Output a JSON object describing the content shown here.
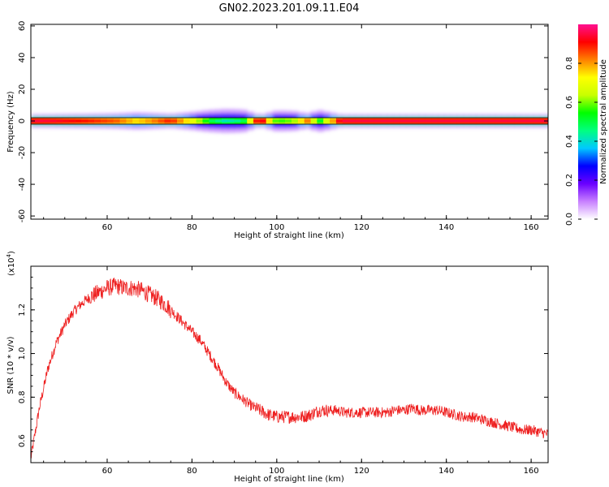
{
  "figure_title": "GN02.2023.201.09.11.E04",
  "chart_data": [
    {
      "type": "heatmap",
      "title": "GN02.2023.201.09.11.E04",
      "xlabel": "Height of straight line (km)",
      "ylabel": "Frequency (Hz)",
      "xlim": [
        42,
        164
      ],
      "ylim": [
        -62,
        61
      ],
      "xticks": [
        60,
        80,
        100,
        120,
        140,
        160
      ],
      "yticks": [
        -60,
        -40,
        -20,
        0,
        20,
        40,
        60
      ],
      "grid": false,
      "description_values": {
        "center_frequency_hz": 0,
        "peak_band": [
          {
            "x": 45,
            "amp": 0.9
          },
          {
            "x": 55,
            "amp": 0.85
          },
          {
            "x": 62,
            "amp": 0.8
          },
          {
            "x": 67,
            "amp": 0.7
          },
          {
            "x": 70,
            "amp": 0.75
          },
          {
            "x": 75,
            "amp": 0.85
          },
          {
            "x": 80,
            "amp": 0.65
          },
          {
            "x": 84,
            "amp": 0.45
          },
          {
            "x": 88,
            "amp": 0.35
          },
          {
            "x": 92,
            "amp": 0.4
          },
          {
            "x": 96,
            "amp": 0.95
          },
          {
            "x": 100,
            "amp": 0.5
          },
          {
            "x": 104,
            "amp": 0.55
          },
          {
            "x": 107,
            "amp": 0.8
          },
          {
            "x": 110,
            "amp": 0.45
          },
          {
            "x": 115,
            "amp": 0.9
          },
          {
            "x": 130,
            "amp": 0.9
          },
          {
            "x": 145,
            "amp": 0.9
          },
          {
            "x": 160,
            "amp": 0.9
          }
        ]
      },
      "colorbar": {
        "label": "Normalized spectral amplitude",
        "range": [
          0,
          1
        ],
        "ticks": [
          "0.0",
          "0.2",
          "0.4",
          "0.6",
          "0.8"
        ],
        "colors": [
          "#ffffff",
          "#c880ff",
          "#6a00ff",
          "#0000ff",
          "#00c8ff",
          "#00ff80",
          "#00ff00",
          "#c8ff00",
          "#ffff00",
          "#ff8000",
          "#ff0000",
          "#ff1090"
        ]
      }
    },
    {
      "type": "line",
      "xlabel": "Height of straight line (km)",
      "ylabel": "SNR (10 * v/v)",
      "y_multiplier": "(x10",
      "y_multiplier_exp": "4",
      "y_multiplier_close": ")",
      "xlim": [
        42,
        164
      ],
      "ylim": [
        0.5,
        1.4
      ],
      "xticks": [
        60,
        80,
        100,
        120,
        140,
        160
      ],
      "yticks": [
        "0.6",
        "0.8",
        "1.0",
        "1.2"
      ],
      "grid": false,
      "series": [
        {
          "color": "#ee2020",
          "x": [
            42,
            44,
            46,
            48,
            50,
            52,
            54,
            56,
            58,
            60,
            62,
            64,
            66,
            68,
            70,
            72,
            74,
            76,
            78,
            80,
            82,
            84,
            86,
            88,
            90,
            92,
            94,
            96,
            98,
            100,
            102,
            104,
            106,
            108,
            110,
            112,
            114,
            116,
            118,
            120,
            122,
            124,
            126,
            128,
            130,
            132,
            134,
            136,
            138,
            140,
            142,
            144,
            146,
            148,
            150,
            152,
            154,
            156,
            158,
            160,
            162,
            164
          ],
          "values": [
            0.52,
            0.75,
            0.93,
            1.05,
            1.13,
            1.19,
            1.23,
            1.26,
            1.28,
            1.3,
            1.31,
            1.3,
            1.3,
            1.29,
            1.27,
            1.25,
            1.22,
            1.18,
            1.14,
            1.1,
            1.06,
            1.0,
            0.94,
            0.87,
            0.82,
            0.79,
            0.76,
            0.74,
            0.72,
            0.71,
            0.71,
            0.71,
            0.71,
            0.72,
            0.74,
            0.74,
            0.74,
            0.73,
            0.73,
            0.73,
            0.73,
            0.73,
            0.73,
            0.74,
            0.74,
            0.75,
            0.74,
            0.74,
            0.74,
            0.73,
            0.72,
            0.71,
            0.71,
            0.7,
            0.69,
            0.68,
            0.67,
            0.66,
            0.65,
            0.65,
            0.64,
            0.63
          ]
        }
      ]
    }
  ]
}
